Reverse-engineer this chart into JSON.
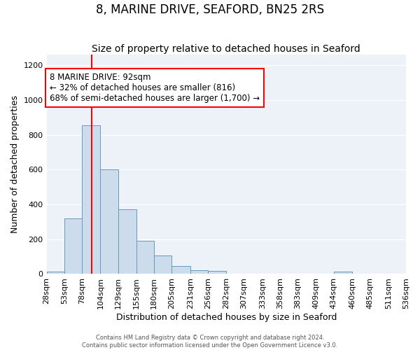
{
  "title": "8, MARINE DRIVE, SEAFORD, BN25 2RS",
  "subtitle": "Size of property relative to detached houses in Seaford",
  "xlabel": "Distribution of detached houses by size in Seaford",
  "ylabel": "Number of detached properties",
  "bar_values": [
    15,
    320,
    855,
    600,
    370,
    190,
    105,
    45,
    20,
    18,
    0,
    0,
    0,
    0,
    0,
    0,
    15,
    0,
    0,
    0
  ],
  "bin_edges": [
    28,
    53,
    78,
    104,
    129,
    155,
    180,
    205,
    231,
    256,
    282,
    307,
    333,
    358,
    383,
    409,
    434,
    460,
    485,
    511,
    536
  ],
  "xlabels": [
    "28sqm",
    "53sqm",
    "78sqm",
    "104sqm",
    "129sqm",
    "155sqm",
    "180sqm",
    "205sqm",
    "231sqm",
    "256sqm",
    "282sqm",
    "307sqm",
    "333sqm",
    "358sqm",
    "383sqm",
    "409sqm",
    "434sqm",
    "460sqm",
    "485sqm",
    "511sqm",
    "536sqm"
  ],
  "bar_color": "#ccdcec",
  "bar_edge_color": "#6699bb",
  "ylim": [
    0,
    1260
  ],
  "yticks": [
    0,
    200,
    400,
    600,
    800,
    1000,
    1200
  ],
  "red_line_x": 92,
  "annotation_text": "8 MARINE DRIVE: 92sqm\n← 32% of detached houses are smaller (816)\n68% of semi-detached houses are larger (1,700) →",
  "background_color": "#edf2f8",
  "grid_color": "#ffffff",
  "footer_text": "Contains HM Land Registry data © Crown copyright and database right 2024.\nContains public sector information licensed under the Open Government Licence v3.0.",
  "title_fontsize": 12,
  "subtitle_fontsize": 10,
  "ylabel_fontsize": 9,
  "xlabel_fontsize": 9,
  "tick_fontsize": 8,
  "annot_fontsize": 8.5,
  "footer_fontsize": 6
}
